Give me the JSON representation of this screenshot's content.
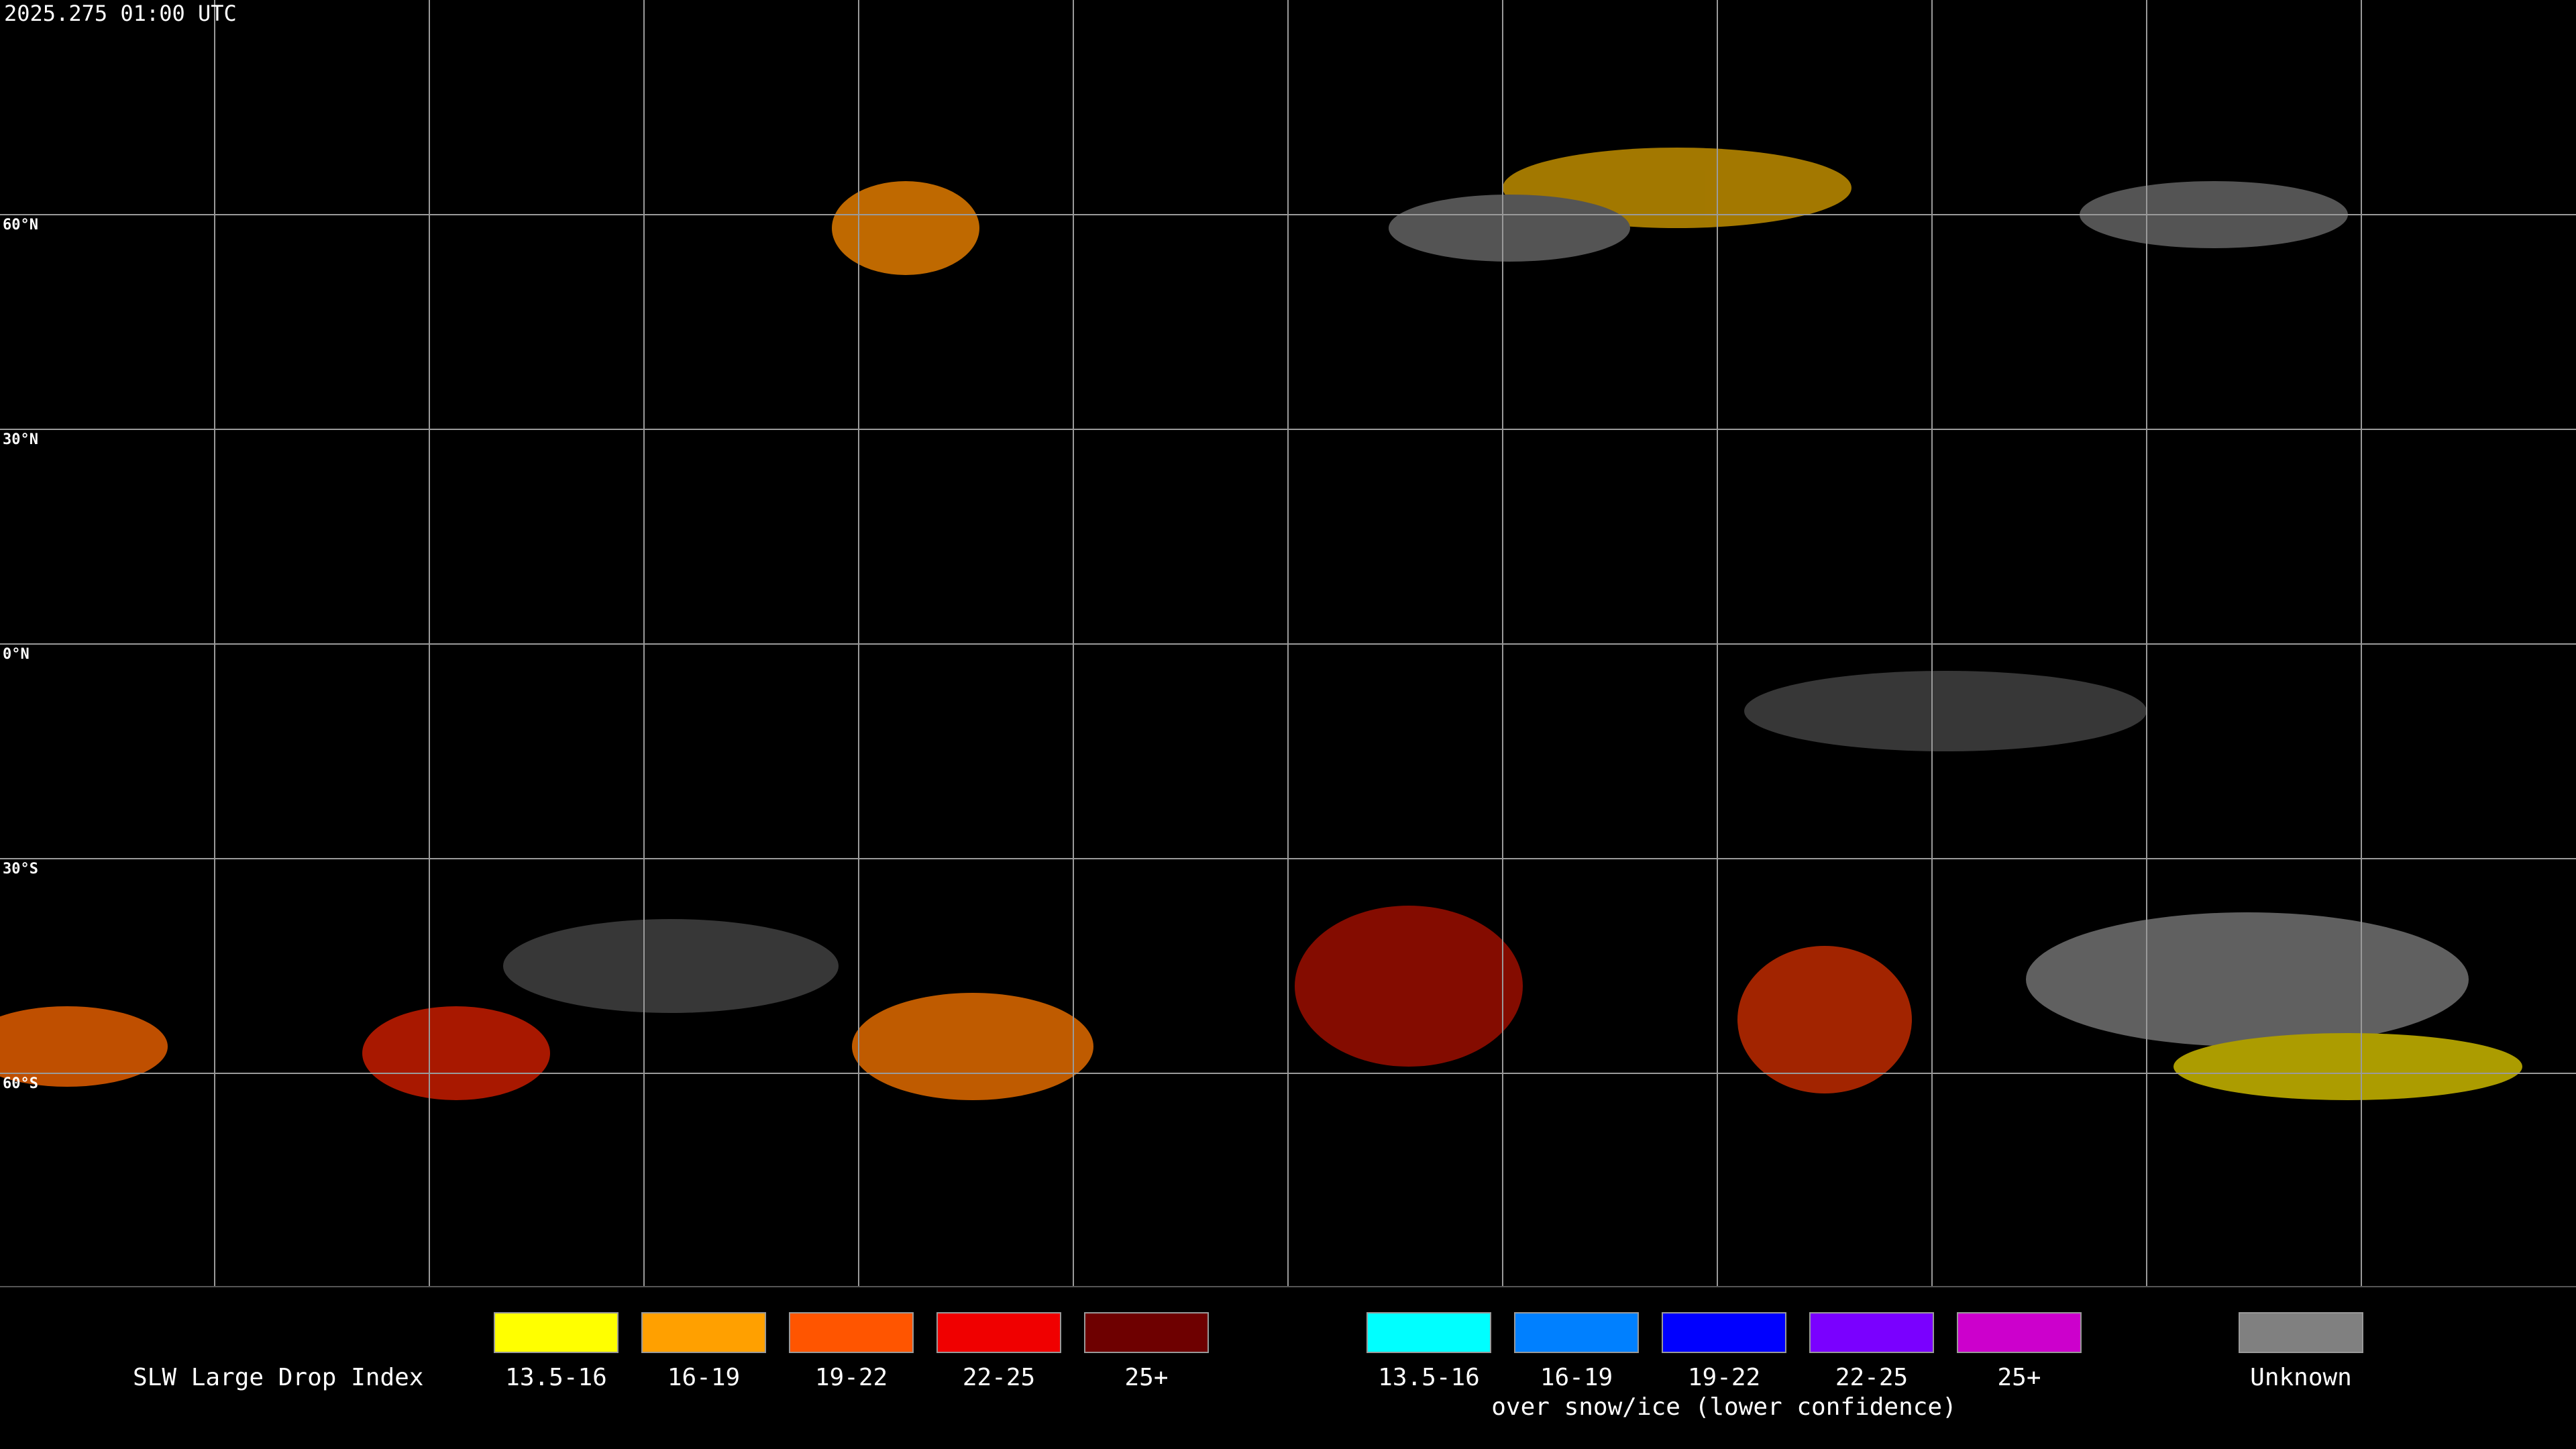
{
  "header": {
    "timestamp": "2025.275 01:00 UTC"
  },
  "map": {
    "lat_labels": [
      "60°N",
      "30°N",
      "0°N",
      "30°S",
      "60°S"
    ]
  },
  "legend": {
    "title": "SLW Large Drop Index",
    "groups": [
      {
        "items": [
          {
            "label": "13.5-16",
            "color": "#ffff00"
          },
          {
            "label": "16-19",
            "color": "#ffa000"
          },
          {
            "label": "19-22",
            "color": "#ff5500"
          },
          {
            "label": "22-25",
            "color": "#f00000"
          },
          {
            "label": "25+",
            "color": "#6e0000"
          }
        ]
      },
      {
        "caption": "over snow/ice (lower confidence)",
        "items": [
          {
            "label": "13.5-16",
            "color": "#00ffff"
          },
          {
            "label": "16-19",
            "color": "#0080ff"
          },
          {
            "label": "19-22",
            "color": "#0000ff"
          },
          {
            "label": "22-25",
            "color": "#7a00ff"
          },
          {
            "label": "25+",
            "color": "#cc00cc"
          }
        ]
      },
      {
        "items": [
          {
            "label": "Unknown",
            "color": "#808080"
          }
        ]
      }
    ]
  }
}
